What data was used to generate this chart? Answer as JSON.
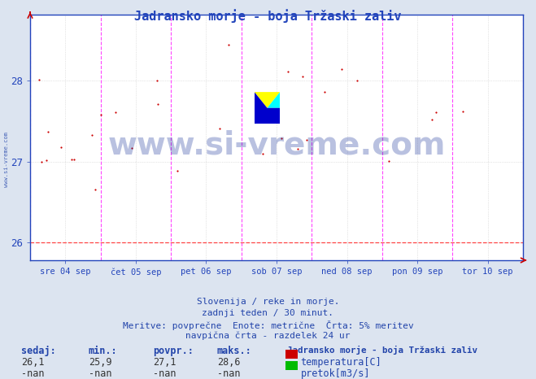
{
  "title": "Jadransko morje - boja Tržaski zaliv",
  "title_color": "#2244bb",
  "bg_color": "#dce4f0",
  "plot_bg_color": "#ffffff",
  "x_tick_labels": [
    "sre 04 sep",
    "čet 05 sep",
    "pet 06 sep",
    "sob 07 sep",
    "ned 08 sep",
    "pon 09 sep",
    "tor 10 sep"
  ],
  "ylim_min": 25.78,
  "ylim_max": 28.82,
  "yticks": [
    26,
    27,
    28
  ],
  "y_tick_color": "#2244bb",
  "x_tick_color": "#2244bb",
  "grid_color": "#cccccc",
  "vline_color": "#ff44ff",
  "hline_color": "#ff4444",
  "data_color": "#cc0000",
  "footer_lines": [
    "Slovenija / reke in morje.",
    "zadnji teden / 30 minut.",
    "Meritve: povprečne  Enote: metrične  Črta: 5% meritev",
    "navpična črta - razdelek 24 ur"
  ],
  "footer_color": "#2244aa",
  "footer_fontsize": 8.0,
  "stats_labels": [
    "sedaj:",
    "min.:",
    "povpr.:",
    "maks.:"
  ],
  "stats_temp": [
    "26,1",
    "25,9",
    "27,1",
    "28,6"
  ],
  "stats_flow": [
    "-nan",
    "-nan",
    "-nan",
    "-nan"
  ],
  "legend_title": "Jadransko morje - boja Tržaski zaliv",
  "legend_temp_label": "temperatura[C]",
  "legend_flow_label": "pretok[m3/s]",
  "legend_temp_color": "#cc0000",
  "legend_flow_color": "#00bb00",
  "watermark_text": "www.si-vreme.com",
  "watermark_color": "#1a3399",
  "watermark_alpha": 0.3,
  "sidebar_text": "www.si-vreme.com",
  "sidebar_color": "#2244aa",
  "n_days": 7,
  "seed": 42
}
